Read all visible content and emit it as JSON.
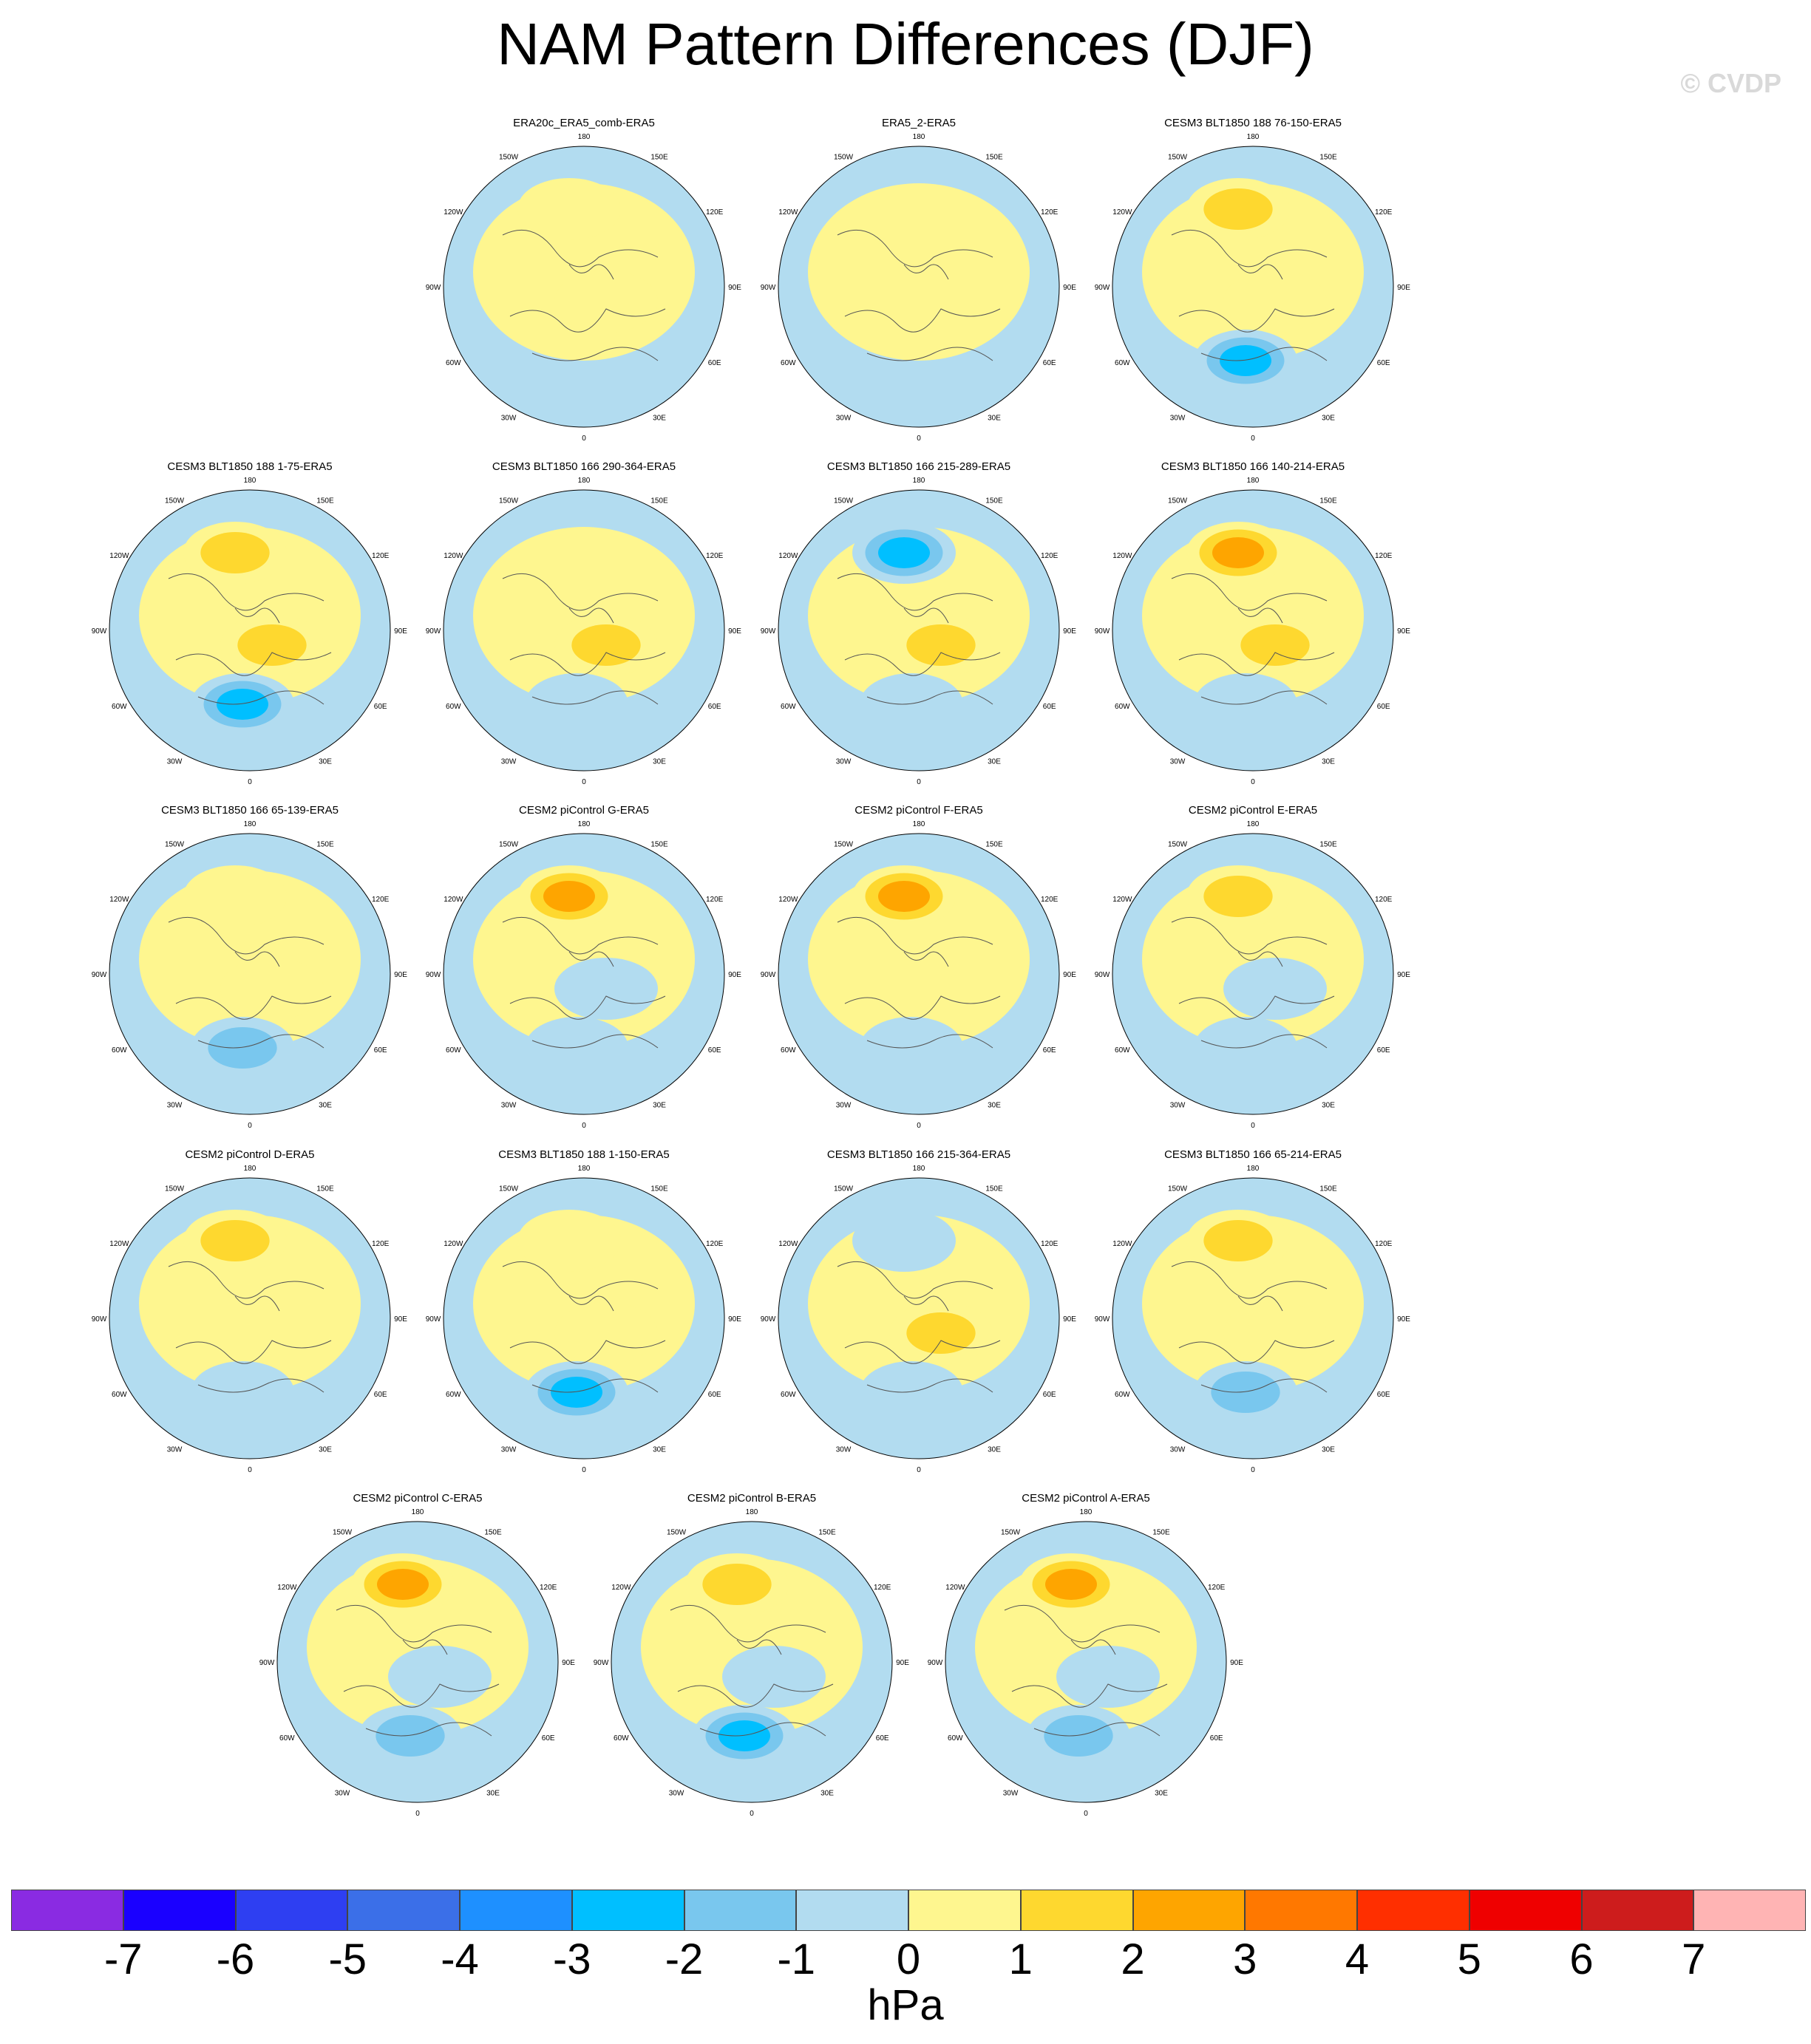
{
  "title": "NAM Pattern Differences (DJF)",
  "watermark": "© CVDP",
  "units": "hPa",
  "colorbar": {
    "ticks": [
      "-7",
      "-6",
      "-5",
      "-4",
      "-3",
      "-2",
      "-1",
      "0",
      "1",
      "2",
      "3",
      "4",
      "5",
      "6",
      "7"
    ],
    "colors": [
      "#8a2be2",
      "#1a00ff",
      "#2e3ff2",
      "#3b6fe8",
      "#1e90ff",
      "#00bfff",
      "#79c7ee",
      "#b2dcf0",
      "#fef68f",
      "#fed82f",
      "#fea500",
      "#ff7800",
      "#ff2f00",
      "#ef0000",
      "#cd1c1c",
      "#ffb4b4"
    ]
  },
  "longitude_labels": [
    "180",
    "150E",
    "120E",
    "90E",
    "60E",
    "30E",
    "0",
    "30W",
    "60W",
    "90W",
    "120W",
    "150W"
  ],
  "panels": [
    {
      "title": "ERA20c_ERA5_comb-ERA5",
      "amplitude": "weak",
      "features": [
        {
          "sector": "pacific",
          "value": 1
        },
        {
          "sector": "arctic",
          "value": 1
        },
        {
          "sector": "atlantic",
          "value": 0
        },
        {
          "sector": "eurasia",
          "value": 0
        }
      ]
    },
    {
      "title": "ERA5_2-ERA5",
      "amplitude": "weak",
      "features": [
        {
          "sector": "pacific",
          "value": 0
        },
        {
          "sector": "arctic",
          "value": 0
        },
        {
          "sector": "atlantic",
          "value": 0
        },
        {
          "sector": "eurasia",
          "value": 0
        }
      ]
    },
    {
      "title": "CESM3 BLT1850 188 76-150-ERA5",
      "amplitude": "moderate",
      "features": [
        {
          "sector": "pacific",
          "value": 2
        },
        {
          "sector": "arctic",
          "value": 1
        },
        {
          "sector": "atlantic",
          "value": -3
        },
        {
          "sector": "eurasia",
          "value": 0
        }
      ]
    },
    {
      "title": "CESM3 BLT1850 188 1-75-ERA5",
      "amplitude": "moderate",
      "features": [
        {
          "sector": "pacific",
          "value": 2
        },
        {
          "sector": "arctic",
          "value": 2
        },
        {
          "sector": "atlantic",
          "value": -3
        },
        {
          "sector": "eurasia",
          "value": 0
        }
      ]
    },
    {
      "title": "CESM3 BLT1850 166 290-364-ERA5",
      "amplitude": "moderate",
      "features": [
        {
          "sector": "pacific",
          "value": 0
        },
        {
          "sector": "arctic",
          "value": 2
        },
        {
          "sector": "atlantic",
          "value": -1
        },
        {
          "sector": "eurasia",
          "value": 0
        }
      ]
    },
    {
      "title": "CESM3 BLT1850 166 215-289-ERA5",
      "amplitude": "moderate",
      "features": [
        {
          "sector": "pacific",
          "value": -3
        },
        {
          "sector": "arctic",
          "value": 2
        },
        {
          "sector": "atlantic",
          "value": -1
        },
        {
          "sector": "eurasia",
          "value": 0
        }
      ]
    },
    {
      "title": "CESM3 BLT1850 166 140-214-ERA5",
      "amplitude": "strong",
      "features": [
        {
          "sector": "pacific",
          "value": 3
        },
        {
          "sector": "arctic",
          "value": 2
        },
        {
          "sector": "atlantic",
          "value": -1
        },
        {
          "sector": "eurasia",
          "value": 0
        }
      ]
    },
    {
      "title": "CESM3 BLT1850 166 65-139-ERA5",
      "amplitude": "moderate",
      "features": [
        {
          "sector": "pacific",
          "value": 1
        },
        {
          "sector": "arctic",
          "value": 1
        },
        {
          "sector": "atlantic",
          "value": -2
        },
        {
          "sector": "eurasia",
          "value": 0
        }
      ]
    },
    {
      "title": "CESM2 piControl G-ERA5",
      "amplitude": "strong",
      "features": [
        {
          "sector": "pacific",
          "value": 3
        },
        {
          "sector": "arctic",
          "value": -1
        },
        {
          "sector": "atlantic",
          "value": -1
        },
        {
          "sector": "eurasia",
          "value": 0
        }
      ]
    },
    {
      "title": "CESM2 piControl F-ERA5",
      "amplitude": "strong",
      "features": [
        {
          "sector": "pacific",
          "value": 3
        },
        {
          "sector": "arctic",
          "value": 0
        },
        {
          "sector": "atlantic",
          "value": -1
        },
        {
          "sector": "eurasia",
          "value": 0
        }
      ]
    },
    {
      "title": "CESM2 piControl E-ERA5",
      "amplitude": "moderate",
      "features": [
        {
          "sector": "pacific",
          "value": 2
        },
        {
          "sector": "arctic",
          "value": -1
        },
        {
          "sector": "atlantic",
          "value": -1
        },
        {
          "sector": "eurasia",
          "value": 0
        }
      ]
    },
    {
      "title": "CESM2 piControl D-ERA5",
      "amplitude": "moderate",
      "features": [
        {
          "sector": "pacific",
          "value": 2
        },
        {
          "sector": "arctic",
          "value": 0
        },
        {
          "sector": "atlantic",
          "value": -1
        },
        {
          "sector": "eurasia",
          "value": 0
        }
      ]
    },
    {
      "title": "CESM3 BLT1850 188 1-150-ERA5",
      "amplitude": "moderate",
      "features": [
        {
          "sector": "pacific",
          "value": 1
        },
        {
          "sector": "arctic",
          "value": 1
        },
        {
          "sector": "atlantic",
          "value": -3
        },
        {
          "sector": "eurasia",
          "value": 0
        }
      ]
    },
    {
      "title": "CESM3 BLT1850 166 215-364-ERA5",
      "amplitude": "moderate",
      "features": [
        {
          "sector": "pacific",
          "value": -1
        },
        {
          "sector": "arctic",
          "value": 2
        },
        {
          "sector": "atlantic",
          "value": -1
        },
        {
          "sector": "eurasia",
          "value": 0
        }
      ]
    },
    {
      "title": "CESM3 BLT1850 166 65-214-ERA5",
      "amplitude": "moderate",
      "features": [
        {
          "sector": "pacific",
          "value": 2
        },
        {
          "sector": "arctic",
          "value": 1
        },
        {
          "sector": "atlantic",
          "value": -2
        },
        {
          "sector": "eurasia",
          "value": 0
        }
      ]
    },
    {
      "title": "CESM2 piControl C-ERA5",
      "amplitude": "strong",
      "features": [
        {
          "sector": "pacific",
          "value": 3
        },
        {
          "sector": "arctic",
          "value": -1
        },
        {
          "sector": "atlantic",
          "value": -2
        },
        {
          "sector": "eurasia",
          "value": 0
        }
      ]
    },
    {
      "title": "CESM2 piControl B-ERA5",
      "amplitude": "moderate",
      "features": [
        {
          "sector": "pacific",
          "value": 2
        },
        {
          "sector": "arctic",
          "value": -1
        },
        {
          "sector": "atlantic",
          "value": -3
        },
        {
          "sector": "eurasia",
          "value": 0
        }
      ]
    },
    {
      "title": "CESM2 piControl A-ERA5",
      "amplitude": "strong",
      "features": [
        {
          "sector": "pacific",
          "value": 3
        },
        {
          "sector": "arctic",
          "value": -1
        },
        {
          "sector": "atlantic",
          "value": -2
        },
        {
          "sector": "eurasia",
          "value": 0
        }
      ]
    }
  ]
}
